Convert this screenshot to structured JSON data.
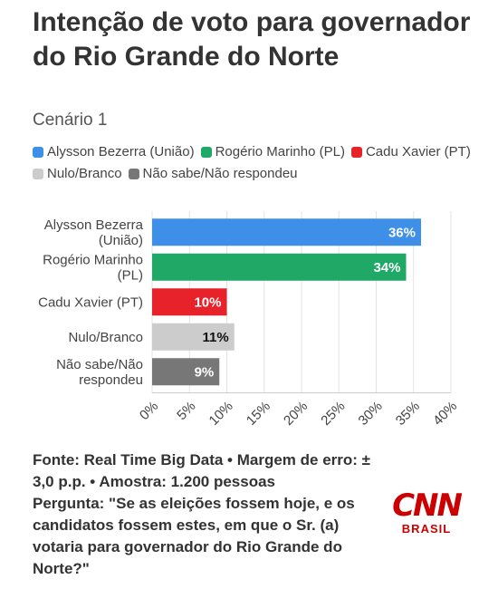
{
  "title": "Intenção de voto para governador do Rio Grande do Norte",
  "subtitle": "Cenário 1",
  "legend": [
    {
      "label": "Alysson Bezerra (União)",
      "color": "#3d8fe8"
    },
    {
      "label": "Rogério Marinho (PL)",
      "color": "#1fa866"
    },
    {
      "label": "Cadu Xavier (PT)",
      "color": "#e8222a"
    },
    {
      "label": "Nulo/Branco",
      "color": "#cccccc"
    },
    {
      "label": "Não sabe/Não respondeu",
      "color": "#777777"
    }
  ],
  "chart_data": {
    "type": "bar",
    "orientation": "horizontal",
    "categories": [
      [
        "Alysson Bezerra",
        "(União)"
      ],
      [
        "Rogério Marinho",
        "(PL)"
      ],
      [
        "Cadu Xavier (PT)"
      ],
      [
        "Nulo/Branco"
      ],
      [
        "Não sabe/Não",
        "respondeu"
      ]
    ],
    "values": [
      36,
      34,
      10,
      11,
      9
    ],
    "value_labels": [
      "36%",
      "34%",
      "10%",
      "11%",
      "9%"
    ],
    "colors": [
      "#3d8fe8",
      "#1fa866",
      "#e8222a",
      "#cccccc",
      "#777777"
    ],
    "label_colors": [
      "#ffffff",
      "#ffffff",
      "#ffffff",
      "#111111",
      "#ffffff"
    ],
    "xlim": [
      0,
      40
    ],
    "xticks": [
      0,
      5,
      10,
      15,
      20,
      25,
      30,
      35,
      40
    ],
    "xtick_labels": [
      "0%",
      "5%",
      "10%",
      "15%",
      "20%",
      "25%",
      "30%",
      "35%",
      "40%"
    ],
    "grid": true
  },
  "footer": {
    "source": "Fonte: Real Time Big Data • Margem de erro: ± 3,0 p.p. • Amostra: 1.200 pessoas",
    "question": "Pergunta: \"Se as eleições fossem hoje, e os candidatos fossem estes, em que o Sr. (a) votaria para governador do Rio Grande do Norte?\""
  },
  "logo": {
    "brand": "CNN",
    "sub": "BRASIL"
  }
}
